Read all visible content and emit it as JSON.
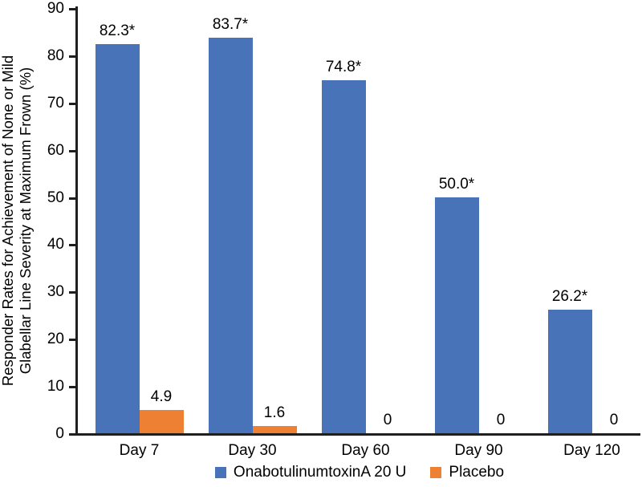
{
  "chart_data": {
    "type": "bar",
    "title": "",
    "ylabel_lines": [
      "Responder Rates for Achievement of None or Mild",
      "Glabellar Line Severity at Maximum Frown (%)"
    ],
    "ylim": [
      0,
      90
    ],
    "yticks": [
      0,
      10,
      20,
      30,
      40,
      50,
      60,
      70,
      80,
      90
    ],
    "categories": [
      "Day 7",
      "Day 30",
      "Day 60",
      "Day 90",
      "Day 120"
    ],
    "series": [
      {
        "name": "OnabotulinumtoxinA 20 U",
        "color": "#4873B8",
        "values": [
          82.3,
          83.7,
          74.8,
          50.0,
          26.2
        ],
        "labels": [
          "82.3*",
          "83.7*",
          "74.8*",
          "50.0*",
          "26.2*"
        ]
      },
      {
        "name": "Placebo",
        "color": "#EE8033",
        "values": [
          4.9,
          1.6,
          0,
          0,
          0
        ],
        "labels": [
          "4.9",
          "1.6",
          "0",
          "0",
          "0"
        ]
      }
    ],
    "legend_position": "bottom",
    "grid": false,
    "axis_color": "#1f1f1f"
  }
}
